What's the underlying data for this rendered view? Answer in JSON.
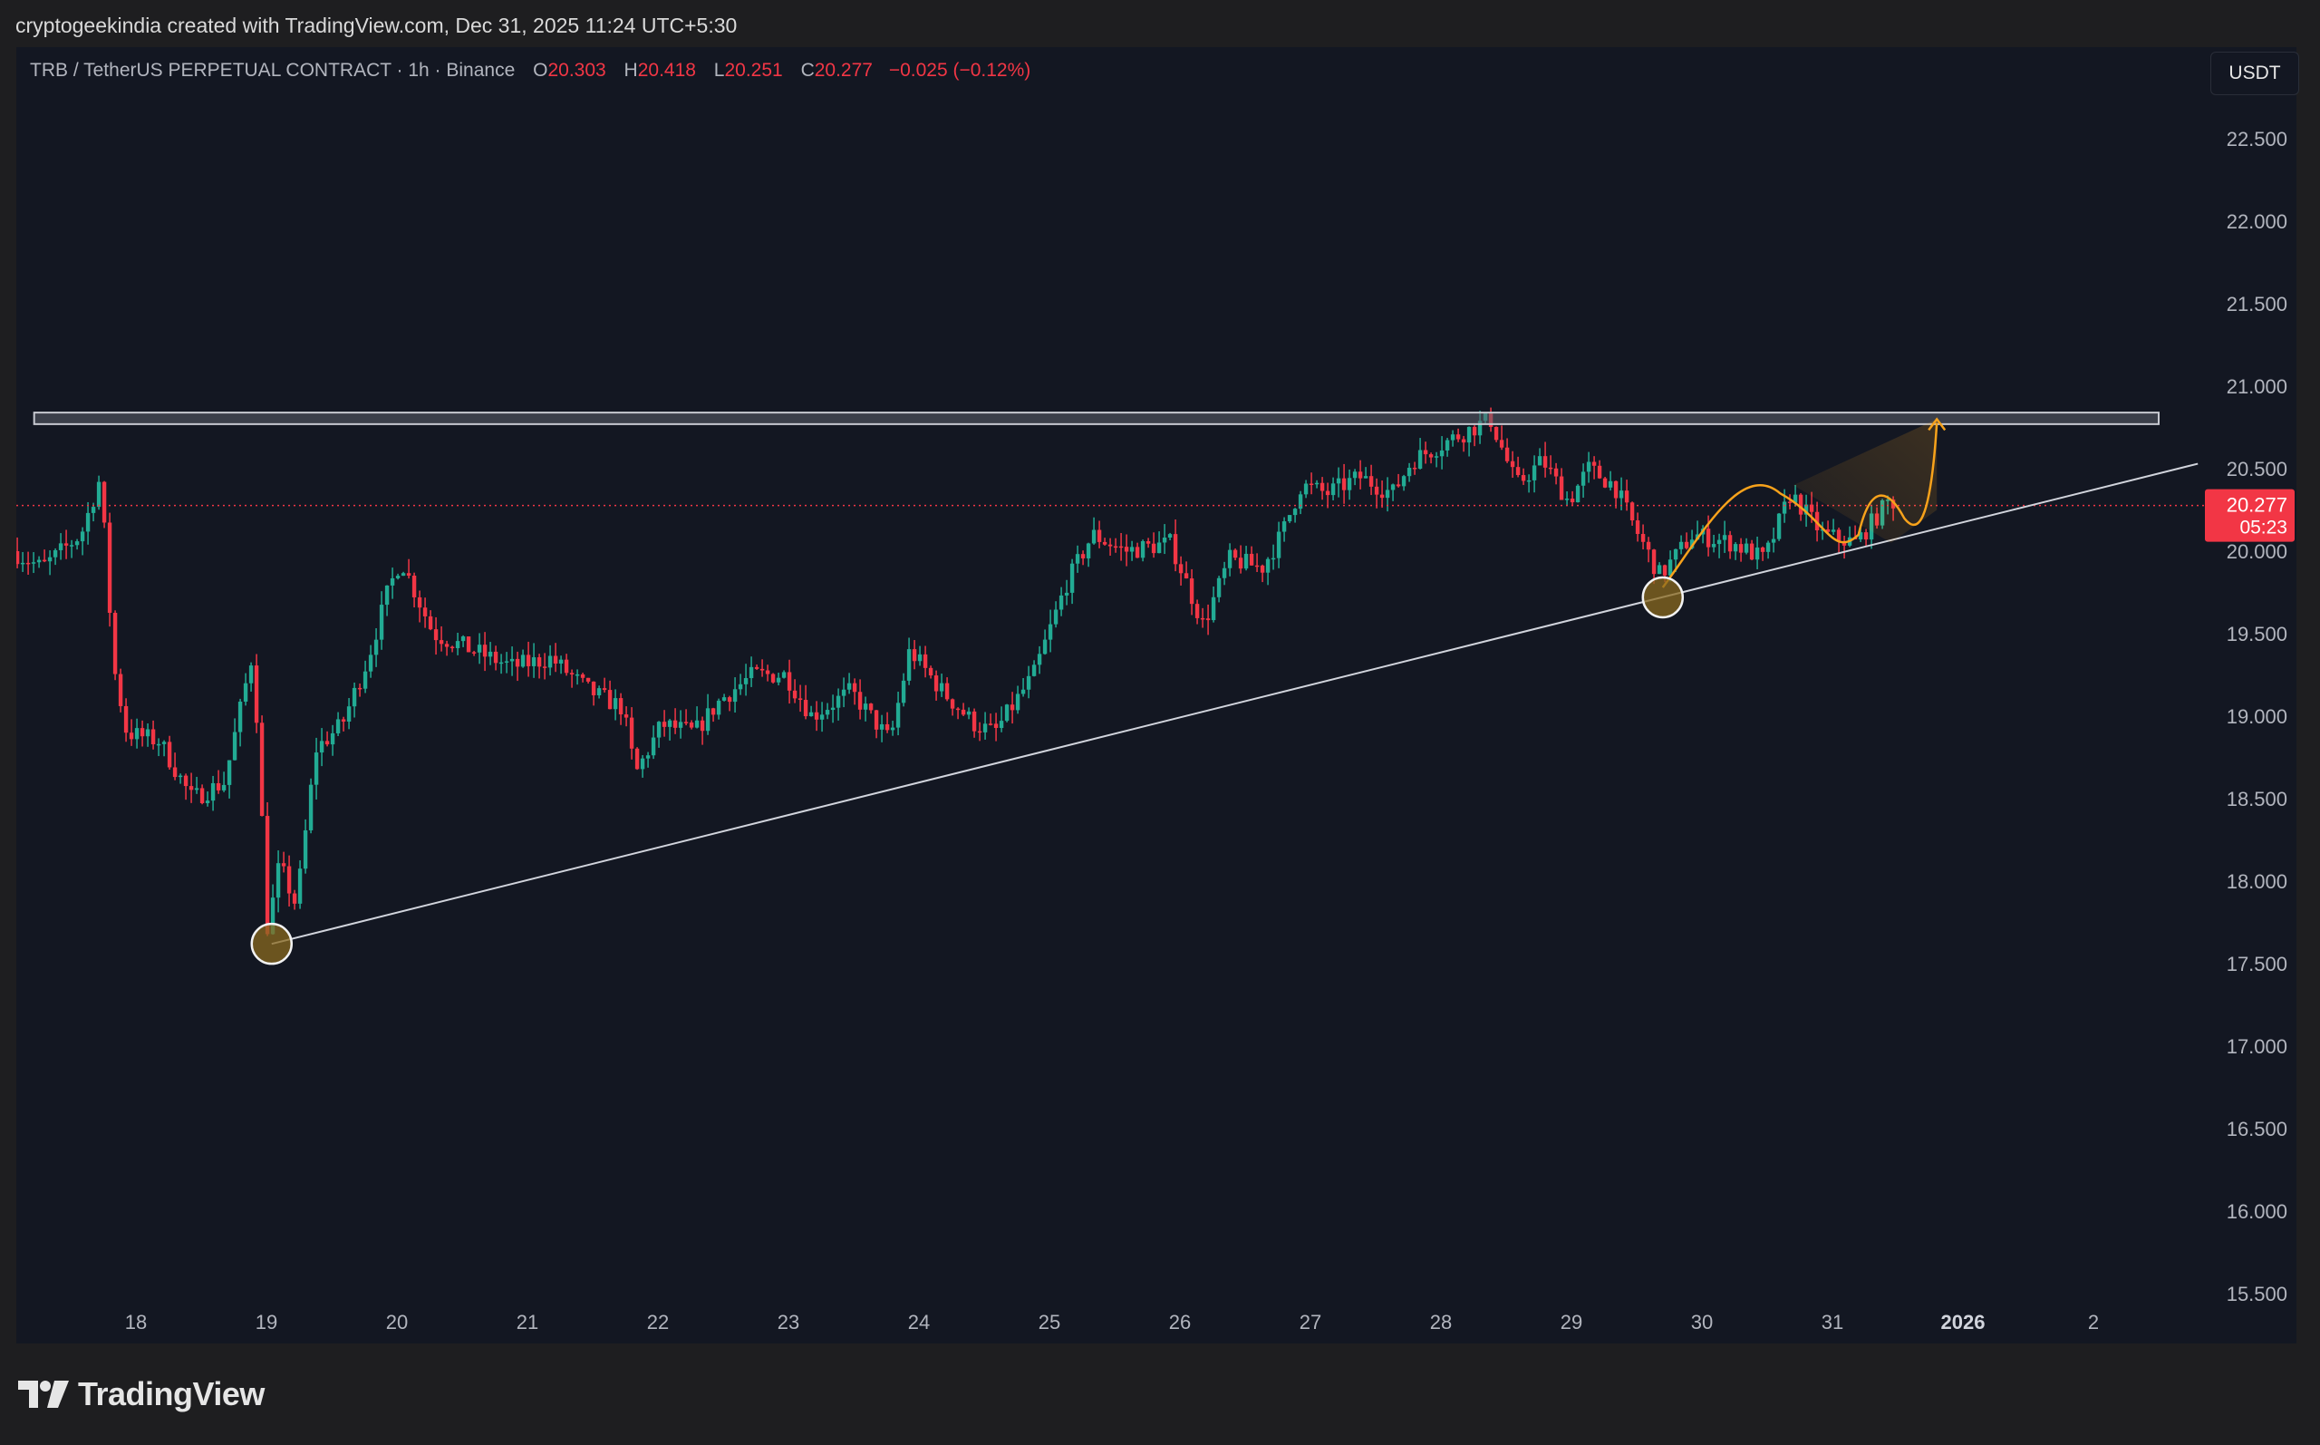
{
  "header": {
    "credit": "cryptogeekindia created with TradingView.com, Dec 31, 2025 11:24 UTC+5:30"
  },
  "legend": {
    "symbol": "TRB / TetherUS PERPETUAL CONTRACT · 1h · Binance",
    "open_label": "O",
    "open": "20.303",
    "high_label": "H",
    "high": "20.418",
    "low_label": "L",
    "low": "20.251",
    "close_label": "C",
    "close": "20.277",
    "change": "−0.025 (−0.12%)"
  },
  "currency_button": "USDT",
  "price_tag": {
    "price": "20.277",
    "countdown": "05:23"
  },
  "footer": {
    "brand": "TradingView"
  },
  "colors": {
    "up": "#22ab94",
    "down": "#f23645",
    "background": "#131722",
    "annotation": "#f7a21b",
    "zone": "#9598a1",
    "trendline": "#d1d4dc"
  },
  "chart_data": {
    "type": "candlestick",
    "symbol": "TRB/USDT Perpetual",
    "interval": "1h",
    "y_ticks": [
      "22.500",
      "22.000",
      "21.500",
      "21.000",
      "20.500",
      "20.000",
      "19.500",
      "19.000",
      "18.500",
      "18.000",
      "17.500",
      "17.000",
      "16.500",
      "16.000",
      "15.500"
    ],
    "x_ticks": [
      {
        "day": 18,
        "label": "18"
      },
      {
        "day": 19,
        "label": "19"
      },
      {
        "day": 20,
        "label": "20"
      },
      {
        "day": 21,
        "label": "21"
      },
      {
        "day": 22,
        "label": "22"
      },
      {
        "day": 23,
        "label": "23"
      },
      {
        "day": 24,
        "label": "24"
      },
      {
        "day": 25,
        "label": "25"
      },
      {
        "day": 26,
        "label": "26"
      },
      {
        "day": 27,
        "label": "27"
      },
      {
        "day": 28,
        "label": "28"
      },
      {
        "day": 29,
        "label": "29"
      },
      {
        "day": 30,
        "label": "30"
      },
      {
        "day": 31,
        "label": "31"
      },
      {
        "day": 32,
        "label": "2026"
      },
      {
        "day": 33,
        "label": "2"
      }
    ],
    "x_range": [
      17.07,
      33.85
    ],
    "y_range": [
      15.4,
      22.9
    ],
    "last_price": 20.277,
    "price_path": [
      [
        17.07,
        20.0
      ],
      [
        17.3,
        19.9
      ],
      [
        17.6,
        20.1
      ],
      [
        17.75,
        20.45
      ],
      [
        17.85,
        19.3
      ],
      [
        17.95,
        18.9
      ],
      [
        18.2,
        18.85
      ],
      [
        18.45,
        18.5
      ],
      [
        18.7,
        18.6
      ],
      [
        18.85,
        19.15
      ],
      [
        18.92,
        19.4
      ],
      [
        19.03,
        17.7
      ],
      [
        19.12,
        18.1
      ],
      [
        19.25,
        17.85
      ],
      [
        19.4,
        18.8
      ],
      [
        19.6,
        18.95
      ],
      [
        19.8,
        19.35
      ],
      [
        19.95,
        19.75
      ],
      [
        20.05,
        19.95
      ],
      [
        20.3,
        19.5
      ],
      [
        20.6,
        19.4
      ],
      [
        20.9,
        19.3
      ],
      [
        21.2,
        19.35
      ],
      [
        21.5,
        19.15
      ],
      [
        21.75,
        19.05
      ],
      [
        21.85,
        18.65
      ],
      [
        22.05,
        18.95
      ],
      [
        22.3,
        18.9
      ],
      [
        22.5,
        19.1
      ],
      [
        22.75,
        19.25
      ],
      [
        23.0,
        19.25
      ],
      [
        23.2,
        19.0
      ],
      [
        23.5,
        19.15
      ],
      [
        23.8,
        18.85
      ],
      [
        23.95,
        19.4
      ],
      [
        24.2,
        19.15
      ],
      [
        24.45,
        18.95
      ],
      [
        24.6,
        18.9
      ],
      [
        24.9,
        19.25
      ],
      [
        25.15,
        19.8
      ],
      [
        25.35,
        20.1
      ],
      [
        25.6,
        20.0
      ],
      [
        25.95,
        20.05
      ],
      [
        26.2,
        19.55
      ],
      [
        26.4,
        19.95
      ],
      [
        26.65,
        19.9
      ],
      [
        26.8,
        20.1
      ],
      [
        26.95,
        20.4
      ],
      [
        27.15,
        20.35
      ],
      [
        27.4,
        20.45
      ],
      [
        27.65,
        20.35
      ],
      [
        27.8,
        20.55
      ],
      [
        28.15,
        20.7
      ],
      [
        28.4,
        20.8
      ],
      [
        28.6,
        20.4
      ],
      [
        28.8,
        20.55
      ],
      [
        29.0,
        20.3
      ],
      [
        29.15,
        20.5
      ],
      [
        29.35,
        20.4
      ],
      [
        29.5,
        20.15
      ],
      [
        29.7,
        19.85
      ],
      [
        29.95,
        20.1
      ],
      [
        30.25,
        20.05
      ],
      [
        30.5,
        19.95
      ],
      [
        30.7,
        20.35
      ],
      [
        30.95,
        20.1
      ],
      [
        31.2,
        20.05
      ],
      [
        31.45,
        20.3
      ]
    ],
    "annotations": {
      "resistance_zone": {
        "price_from": 20.77,
        "price_to": 20.84,
        "day_from": 17.22,
        "day_to": 33.5
      },
      "ascending_trendline": {
        "from": {
          "day": 19.04,
          "price": 17.62
        },
        "to": {
          "day": 33.8,
          "price": 20.53
        }
      },
      "swing_low_markers": [
        {
          "day": 19.04,
          "price": 17.62
        },
        {
          "day": 29.7,
          "price": 19.72
        }
      ],
      "projection_arrow_target": {
        "day": 31.8,
        "price": 20.8
      }
    }
  }
}
